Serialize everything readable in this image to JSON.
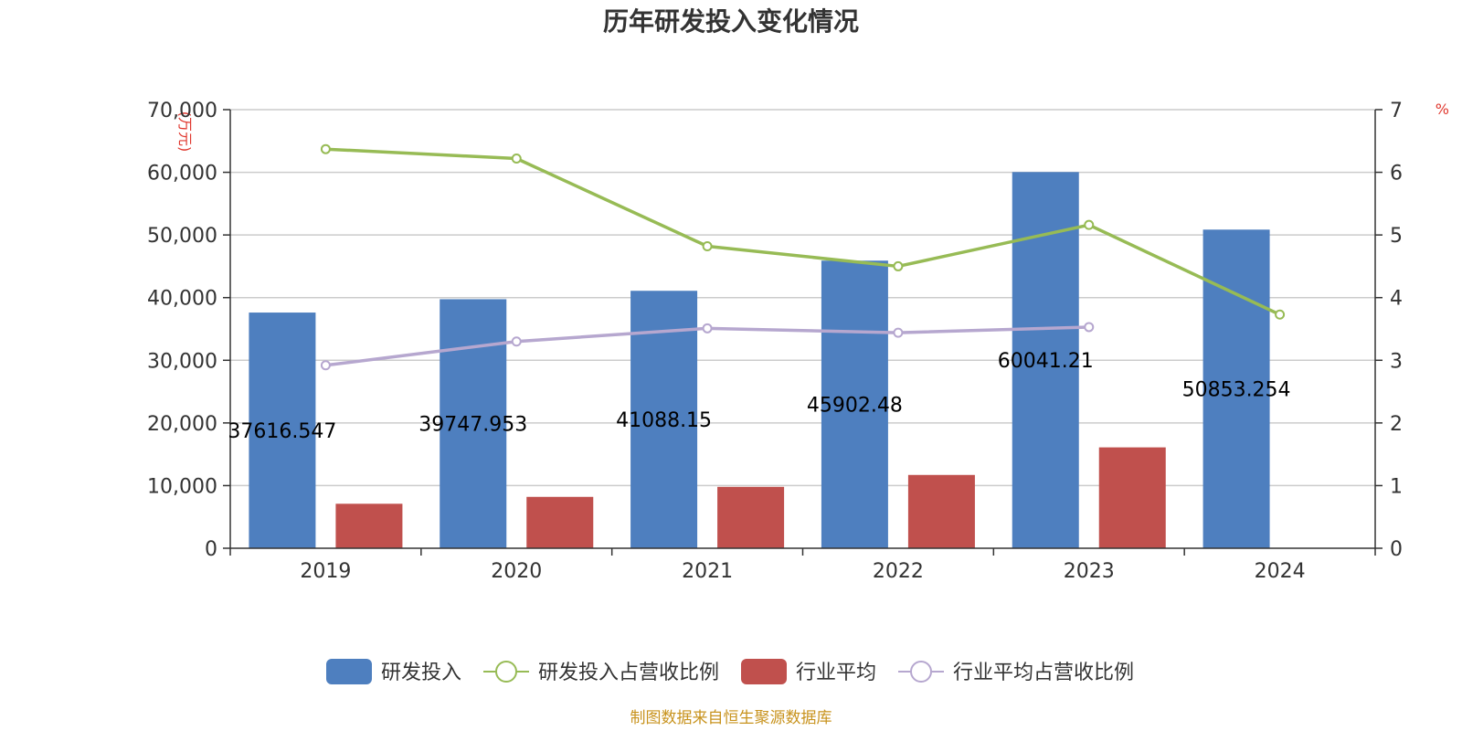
{
  "chart_data": {
    "type": "bar",
    "title": "历年研发投入变化情况",
    "categories": [
      "2019",
      "2020",
      "2021",
      "2022",
      "2023",
      "2024"
    ],
    "y_left": {
      "unit": "(万元)",
      "range": [
        0,
        70000
      ],
      "ticks": [
        0,
        10000,
        20000,
        30000,
        40000,
        50000,
        60000,
        70000
      ],
      "tick_labels": [
        "0",
        "10,000",
        "20,000",
        "30,000",
        "40,000",
        "50,000",
        "60,000",
        "70,000"
      ]
    },
    "y_right": {
      "unit": "%",
      "range": [
        0,
        7
      ],
      "ticks": [
        0,
        1,
        2,
        3,
        4,
        5,
        6,
        7
      ],
      "tick_labels": [
        "0",
        "1",
        "2",
        "3",
        "4",
        "5",
        "6",
        "7"
      ]
    },
    "grid": true,
    "legend_position": "bottom",
    "series": [
      {
        "name": "研发投入",
        "kind": "bar",
        "axis": "left",
        "color": "#4e7fbf",
        "values": [
          37616.547,
          39747.953,
          41088.15,
          45902.48,
          60041.21,
          50853.254
        ],
        "labels": [
          "37616.547",
          "39747.953",
          "41088.15",
          "45902.48",
          "60041.21",
          "50853.254"
        ]
      },
      {
        "name": "研发投入占营收比例",
        "kind": "line",
        "axis": "right",
        "color": "#97bb55",
        "values": [
          6.37,
          6.22,
          4.82,
          4.5,
          5.16,
          3.73
        ]
      },
      {
        "name": "行业平均",
        "kind": "bar",
        "axis": "left",
        "color": "#c0504d",
        "values": [
          7100,
          8200,
          9800,
          11700,
          16100,
          null
        ]
      },
      {
        "name": "行业平均占营收比例",
        "kind": "line",
        "axis": "right",
        "color": "#b6a7cf",
        "values": [
          2.92,
          3.3,
          3.51,
          3.44,
          3.53,
          null
        ]
      }
    ],
    "source": "制图数据来自恒生聚源数据库"
  }
}
